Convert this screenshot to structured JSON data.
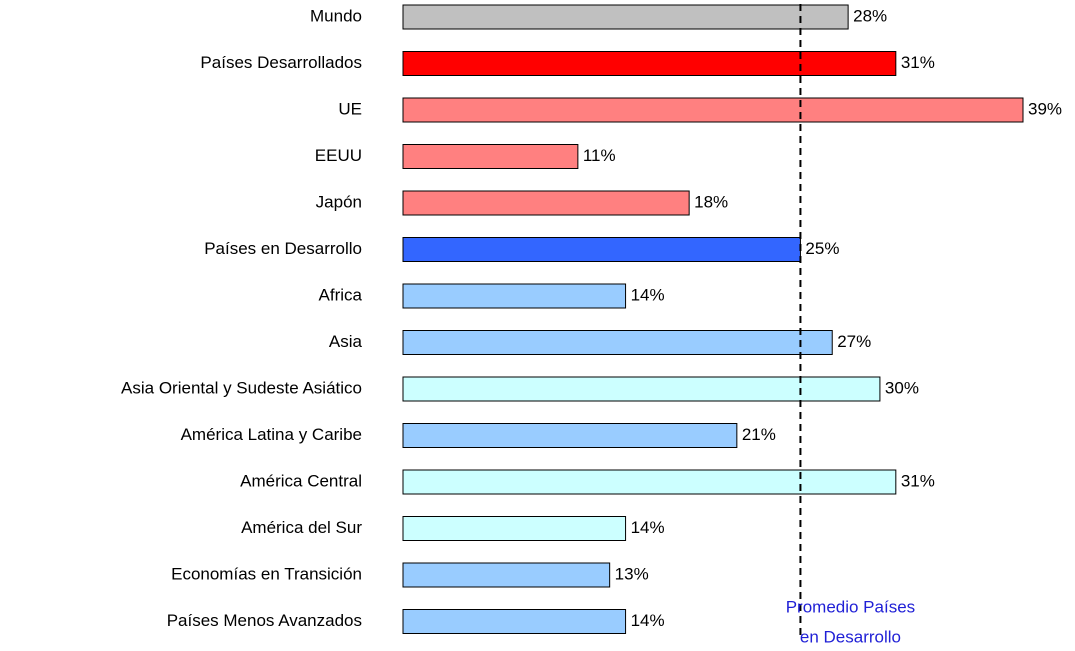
{
  "chart_data": {
    "type": "bar",
    "orientation": "horizontal",
    "categories": [
      "Mundo",
      "Países Desarrollados",
      "UE",
      "EEUU",
      "Japón",
      "Países en Desarrollo",
      "Africa",
      "Asia",
      "Asia Oriental y Sudeste Asiático",
      "América Latina y Caribe",
      "América Central",
      "América del Sur",
      "Economías en Transición",
      "Países Menos Avanzados"
    ],
    "values": [
      28,
      31,
      39,
      11,
      18,
      25,
      14,
      27,
      30,
      21,
      31,
      14,
      13,
      14
    ],
    "value_labels": [
      "28%",
      "31%",
      "39%",
      "11%",
      "18%",
      "25%",
      "14%",
      "27%",
      "30%",
      "21%",
      "31%",
      "14%",
      "13%",
      "14%"
    ],
    "colors": [
      "#c0c0c0",
      "#ff0000",
      "#ff8080",
      "#ff8080",
      "#ff8080",
      "#3366ff",
      "#99ccff",
      "#99ccff",
      "#ccffff",
      "#99ccff",
      "#ccffff",
      "#ccffff",
      "#99ccff",
      "#99ccff"
    ],
    "reference_line": {
      "value": 25,
      "label": [
        "Promedio Países",
        "en Desarrollo"
      ]
    }
  }
}
